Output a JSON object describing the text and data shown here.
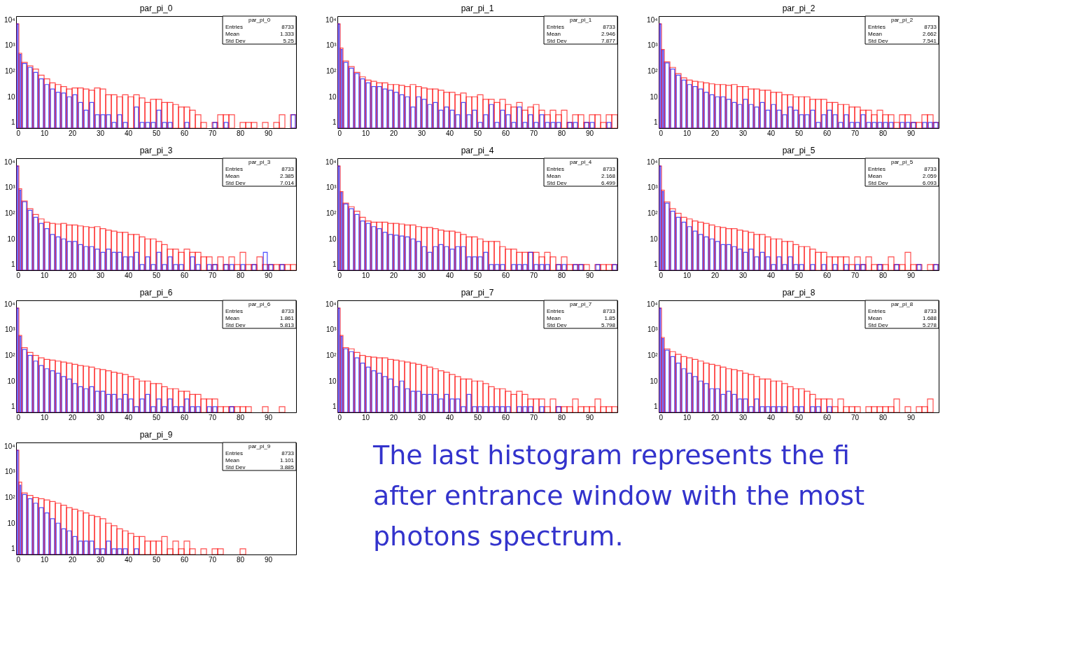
{
  "chart_data": [
    {
      "type": "histogram",
      "title": "par_pi_0",
      "bins": [
        0,
        1,
        2,
        4,
        6,
        8,
        10,
        12,
        14,
        16,
        18,
        20,
        22,
        24,
        26,
        28,
        30,
        32,
        34,
        36,
        38,
        40,
        42,
        44,
        46,
        48,
        50,
        52,
        54,
        56,
        58,
        60,
        62,
        64,
        66,
        68,
        70,
        72,
        74,
        76,
        78,
        80,
        82,
        84,
        86,
        88,
        90,
        92,
        94,
        96,
        98,
        100
      ],
      "xlim": [
        0,
        100
      ],
      "xticks": [
        0,
        10,
        20,
        30,
        40,
        50,
        60,
        70,
        80,
        90
      ],
      "ylim": [
        0.6,
        14000
      ],
      "log": true,
      "yticks": [
        1,
        10,
        {
          "value": 100,
          "label": "10²"
        },
        {
          "value": 1000,
          "label": "10³"
        },
        {
          "value": 10000,
          "label": "10⁴"
        }
      ],
      "annotations": [
        "par_pi_0",
        "Entries",
        "8733",
        "Mean",
        "1.333",
        "Std Dev",
        "5.25"
      ],
      "series": [
        {
          "color": "#ff0000",
          "values": [
            7000,
            500,
            220,
            160,
            120,
            70,
            50,
            35,
            30,
            25,
            20,
            22,
            22,
            20,
            18,
            22,
            20,
            12,
            12,
            10,
            12,
            10,
            12,
            9,
            6,
            8,
            8,
            6,
            6,
            5,
            4,
            4,
            3,
            2,
            1,
            null,
            1,
            2,
            2,
            2,
            null,
            1,
            1,
            1,
            null,
            1,
            null,
            1,
            2,
            null,
            2
          ]
        },
        {
          "color": "#0000ff",
          "values": [
            7000,
            450,
            200,
            140,
            90,
            50,
            30,
            20,
            15,
            14,
            10,
            12,
            6,
            3,
            6,
            2,
            2,
            2,
            1,
            2,
            1,
            null,
            4,
            1,
            1,
            1,
            3,
            1,
            1,
            null,
            null,
            1,
            null,
            null,
            null,
            null,
            1,
            null,
            1,
            null,
            null,
            null,
            null,
            null,
            null,
            null,
            null,
            null,
            null,
            null,
            2
          ]
        }
      ]
    },
    {
      "type": "histogram",
      "title": "par_pi_1",
      "bins": [
        0,
        1,
        2,
        4,
        6,
        8,
        10,
        12,
        14,
        16,
        18,
        20,
        22,
        24,
        26,
        28,
        30,
        32,
        34,
        36,
        38,
        40,
        42,
        44,
        46,
        48,
        50,
        52,
        54,
        56,
        58,
        60,
        62,
        64,
        66,
        68,
        70,
        72,
        74,
        76,
        78,
        80,
        82,
        84,
        86,
        88,
        90,
        92,
        94,
        96,
        98,
        100
      ],
      "xlim": [
        0,
        100
      ],
      "xticks": [
        0,
        10,
        20,
        30,
        40,
        50,
        60,
        70,
        80,
        90
      ],
      "ylim": [
        0.6,
        14000
      ],
      "log": true,
      "yticks": [
        1,
        10,
        {
          "value": 100,
          "label": "10²"
        },
        {
          "value": 1000,
          "label": "10³"
        },
        {
          "value": 10000,
          "label": "10⁴"
        }
      ],
      "annotations": [
        "par_pi_1",
        "Entries",
        "8733",
        "Mean",
        "2.946",
        "Std Dev",
        "7.877"
      ],
      "series": [
        {
          "color": "#ff0000",
          "values": [
            7000,
            800,
            250,
            150,
            90,
            60,
            45,
            40,
            35,
            35,
            30,
            30,
            28,
            25,
            30,
            25,
            22,
            20,
            20,
            18,
            15,
            15,
            12,
            14,
            10,
            10,
            12,
            8,
            8,
            6,
            8,
            5,
            4,
            6,
            3,
            4,
            5,
            3,
            2,
            3,
            2,
            3,
            1,
            2,
            2,
            1,
            2,
            2,
            1,
            2,
            2
          ]
        },
        {
          "color": "#0000ff",
          "values": [
            7000,
            700,
            220,
            130,
            80,
            50,
            35,
            25,
            25,
            20,
            18,
            15,
            12,
            10,
            4,
            10,
            8,
            5,
            6,
            3,
            4,
            3,
            2,
            6,
            2,
            3,
            1,
            2,
            5,
            1,
            3,
            2,
            1,
            4,
            1,
            2,
            1,
            2,
            1,
            1,
            1,
            null,
            1,
            1,
            null,
            1,
            1,
            null,
            null,
            1,
            null
          ]
        }
      ]
    },
    {
      "type": "histogram",
      "title": "par_pi_2",
      "bins": [
        0,
        1,
        2,
        4,
        6,
        8,
        10,
        12,
        14,
        16,
        18,
        20,
        22,
        24,
        26,
        28,
        30,
        32,
        34,
        36,
        38,
        40,
        42,
        44,
        46,
        48,
        50,
        52,
        54,
        56,
        58,
        60,
        62,
        64,
        66,
        68,
        70,
        72,
        74,
        76,
        78,
        80,
        82,
        84,
        86,
        88,
        90,
        92,
        94,
        96,
        98,
        100
      ],
      "xlim": [
        0,
        100
      ],
      "xticks": [
        0,
        10,
        20,
        30,
        40,
        50,
        60,
        70,
        80,
        90
      ],
      "ylim": [
        0.6,
        14000
      ],
      "log": true,
      "yticks": [
        1,
        10,
        {
          "value": 100,
          "label": "10²"
        },
        {
          "value": 1000,
          "label": "10³"
        },
        {
          "value": 10000,
          "label": "10⁴"
        }
      ],
      "annotations": [
        "par_pi_2",
        "Entries",
        "8733",
        "Mean",
        "2.662",
        "Std Dev",
        "7.541"
      ],
      "series": [
        {
          "color": "#ff0000",
          "values": [
            7000,
            700,
            230,
            140,
            80,
            55,
            45,
            40,
            38,
            35,
            32,
            30,
            30,
            28,
            30,
            25,
            25,
            20,
            20,
            18,
            18,
            15,
            15,
            12,
            12,
            10,
            10,
            10,
            8,
            8,
            8,
            6,
            6,
            5,
            5,
            4,
            4,
            3,
            3,
            2,
            3,
            2,
            2,
            1,
            2,
            2,
            1,
            1,
            2,
            2,
            1
          ]
        },
        {
          "color": "#0000ff",
          "values": [
            7000,
            650,
            210,
            120,
            70,
            45,
            30,
            25,
            20,
            15,
            12,
            10,
            10,
            8,
            6,
            5,
            8,
            5,
            4,
            6,
            3,
            5,
            3,
            2,
            4,
            3,
            2,
            2,
            3,
            1,
            2,
            3,
            2,
            1,
            2,
            1,
            1,
            2,
            1,
            1,
            1,
            1,
            1,
            null,
            1,
            1,
            1,
            null,
            1,
            1,
            1
          ]
        }
      ]
    },
    {
      "type": "histogram",
      "title": "par_pi_3",
      "bins": [
        0,
        1,
        2,
        4,
        6,
        8,
        10,
        12,
        14,
        16,
        18,
        20,
        22,
        24,
        26,
        28,
        30,
        32,
        34,
        36,
        38,
        40,
        42,
        44,
        46,
        48,
        50,
        52,
        54,
        56,
        58,
        60,
        62,
        64,
        66,
        68,
        70,
        72,
        74,
        76,
        78,
        80,
        82,
        84,
        86,
        88,
        90,
        92,
        94,
        96,
        98,
        100
      ],
      "xlim": [
        0,
        100
      ],
      "xticks": [
        0,
        10,
        20,
        30,
        40,
        50,
        60,
        70,
        80,
        90
      ],
      "ylim": [
        0.6,
        14000
      ],
      "log": true,
      "yticks": [
        1,
        10,
        {
          "value": 100,
          "label": "10²"
        },
        {
          "value": 1000,
          "label": "10³"
        },
        {
          "value": 10000,
          "label": "10⁴"
        }
      ],
      "annotations": [
        "par_pi_3",
        "Entries",
        "8733",
        "Mean",
        "2.385",
        "Std Dev",
        "7.014"
      ],
      "series": [
        {
          "color": "#ff0000",
          "values": [
            7000,
            900,
            300,
            150,
            90,
            60,
            45,
            40,
            38,
            40,
            35,
            35,
            32,
            30,
            28,
            30,
            25,
            22,
            20,
            18,
            18,
            15,
            15,
            12,
            10,
            10,
            8,
            6,
            4,
            4,
            3,
            4,
            3,
            3,
            2,
            2,
            1,
            2,
            1,
            2,
            1,
            3,
            1,
            1,
            2,
            1,
            1,
            1,
            1,
            1,
            1
          ]
        },
        {
          "color": "#0000ff",
          "values": [
            7000,
            800,
            280,
            130,
            70,
            40,
            25,
            15,
            12,
            10,
            8,
            8,
            6,
            5,
            5,
            4,
            3,
            4,
            3,
            3,
            2,
            2,
            3,
            1,
            2,
            1,
            3,
            1,
            2,
            1,
            1,
            null,
            2,
            1,
            null,
            1,
            1,
            null,
            1,
            1,
            null,
            1,
            null,
            1,
            null,
            3,
            1,
            null,
            1,
            null,
            null
          ]
        }
      ]
    },
    {
      "type": "histogram",
      "title": "par_pi_4",
      "bins": [
        0,
        1,
        2,
        4,
        6,
        8,
        10,
        12,
        14,
        16,
        18,
        20,
        22,
        24,
        26,
        28,
        30,
        32,
        34,
        36,
        38,
        40,
        42,
        44,
        46,
        48,
        50,
        52,
        54,
        56,
        58,
        60,
        62,
        64,
        66,
        68,
        70,
        72,
        74,
        76,
        78,
        80,
        82,
        84,
        86,
        88,
        90,
        92,
        94,
        96,
        98,
        100
      ],
      "xlim": [
        0,
        100
      ],
      "xticks": [
        0,
        10,
        20,
        30,
        40,
        50,
        60,
        70,
        80,
        90
      ],
      "ylim": [
        0.6,
        14000
      ],
      "log": true,
      "yticks": [
        1,
        10,
        {
          "value": 100,
          "label": "10²"
        },
        {
          "value": 1000,
          "label": "10³"
        },
        {
          "value": 10000,
          "label": "10⁴"
        }
      ],
      "annotations": [
        "par_pi_4",
        "Entries",
        "8733",
        "Mean",
        "2.168",
        "Std Dev",
        "6.499"
      ],
      "series": [
        {
          "color": "#ff0000",
          "values": [
            7000,
            700,
            250,
            180,
            120,
            70,
            50,
            45,
            45,
            45,
            40,
            40,
            38,
            35,
            35,
            30,
            28,
            28,
            25,
            22,
            20,
            20,
            18,
            15,
            12,
            12,
            10,
            8,
            8,
            8,
            5,
            4,
            4,
            3,
            3,
            3,
            3,
            2,
            3,
            2,
            1,
            2,
            1,
            1,
            1,
            1,
            null,
            1,
            1,
            1,
            1
          ]
        },
        {
          "color": "#0000ff",
          "values": [
            7000,
            650,
            230,
            150,
            90,
            50,
            40,
            30,
            25,
            18,
            15,
            14,
            13,
            12,
            10,
            8,
            5,
            3,
            5,
            6,
            5,
            4,
            5,
            5,
            2,
            2,
            2,
            3,
            1,
            1,
            1,
            null,
            1,
            1,
            1,
            3,
            1,
            1,
            1,
            null,
            1,
            1,
            null,
            1,
            1,
            null,
            null,
            1,
            null,
            null,
            1
          ]
        }
      ]
    },
    {
      "type": "histogram",
      "title": "par_pi_5",
      "bins": [
        0,
        1,
        2,
        4,
        6,
        8,
        10,
        12,
        14,
        16,
        18,
        20,
        22,
        24,
        26,
        28,
        30,
        32,
        34,
        36,
        38,
        40,
        42,
        44,
        46,
        48,
        50,
        52,
        54,
        56,
        58,
        60,
        62,
        64,
        66,
        68,
        70,
        72,
        74,
        76,
        78,
        80,
        82,
        84,
        86,
        88,
        90,
        92,
        94,
        96,
        98,
        100
      ],
      "xlim": [
        0,
        100
      ],
      "xticks": [
        0,
        10,
        20,
        30,
        40,
        50,
        60,
        70,
        80,
        90
      ],
      "ylim": [
        0.6,
        14000
      ],
      "log": true,
      "yticks": [
        1,
        10,
        {
          "value": 100,
          "label": "10²"
        },
        {
          "value": 1000,
          "label": "10³"
        },
        {
          "value": 10000,
          "label": "10⁴"
        }
      ],
      "annotations": [
        "par_pi_5",
        "Entries",
        "8733",
        "Mean",
        "2.059",
        "Std Dev",
        "6.093"
      ],
      "series": [
        {
          "color": "#ff0000",
          "values": [
            7000,
            800,
            280,
            150,
            100,
            70,
            60,
            50,
            45,
            40,
            35,
            30,
            28,
            25,
            25,
            22,
            20,
            18,
            15,
            15,
            12,
            10,
            10,
            8,
            8,
            6,
            5,
            5,
            4,
            3,
            3,
            2,
            2,
            2,
            2,
            1,
            2,
            1,
            2,
            1,
            1,
            1,
            2,
            1,
            1,
            3,
            1,
            1,
            null,
            1,
            1
          ]
        },
        {
          "color": "#0000ff",
          "values": [
            7000,
            700,
            250,
            120,
            70,
            45,
            30,
            20,
            15,
            12,
            10,
            8,
            6,
            6,
            5,
            4,
            3,
            4,
            2,
            3,
            2,
            1,
            2,
            1,
            2,
            1,
            1,
            null,
            1,
            null,
            1,
            null,
            1,
            null,
            1,
            null,
            1,
            1,
            null,
            null,
            1,
            null,
            null,
            1,
            null,
            null,
            null,
            1,
            null,
            null,
            1
          ]
        }
      ]
    },
    {
      "type": "histogram",
      "title": "par_pi_6",
      "bins": [
        0,
        1,
        2,
        4,
        6,
        8,
        10,
        12,
        14,
        16,
        18,
        20,
        22,
        24,
        26,
        28,
        30,
        32,
        34,
        36,
        38,
        40,
        42,
        44,
        46,
        48,
        50,
        52,
        54,
        56,
        58,
        60,
        62,
        64,
        66,
        68,
        70,
        72,
        74,
        76,
        78,
        80,
        82,
        84,
        88,
        90,
        94,
        96
      ],
      "xlim": [
        0,
        100
      ],
      "xticks": [
        0,
        10,
        20,
        30,
        40,
        50,
        60,
        70,
        80,
        90
      ],
      "ylim": [
        0.6,
        14000
      ],
      "log": true,
      "yticks": [
        1,
        10,
        {
          "value": 100,
          "label": "10²"
        },
        {
          "value": 1000,
          "label": "10³"
        },
        {
          "value": 10000,
          "label": "10⁴"
        }
      ],
      "annotations": [
        "par_pi_6",
        "Entries",
        "8733",
        "Mean",
        "1.861",
        "Std Dev",
        "5.813"
      ],
      "series": [
        {
          "color": "#ff0000",
          "values": [
            7000,
            600,
            200,
            130,
            100,
            80,
            70,
            65,
            60,
            55,
            50,
            45,
            40,
            38,
            35,
            30,
            28,
            25,
            22,
            20,
            18,
            15,
            12,
            10,
            10,
            8,
            8,
            6,
            5,
            5,
            4,
            4,
            3,
            3,
            2,
            2,
            2,
            1,
            1,
            1,
            1,
            1,
            1,
            null,
            1,
            null,
            1
          ]
        },
        {
          "color": "#0000ff",
          "values": [
            7000,
            550,
            170,
            100,
            60,
            40,
            30,
            25,
            20,
            15,
            12,
            8,
            6,
            5,
            6,
            4,
            4,
            3,
            3,
            2,
            3,
            2,
            1,
            2,
            3,
            1,
            2,
            1,
            2,
            1,
            1,
            2,
            1,
            1,
            null,
            1,
            1,
            null,
            null,
            1,
            null,
            null,
            null,
            null,
            null,
            null,
            null
          ]
        }
      ]
    },
    {
      "type": "histogram",
      "title": "par_pi_7",
      "bins": [
        0,
        1,
        2,
        4,
        6,
        8,
        10,
        12,
        14,
        16,
        18,
        20,
        22,
        24,
        26,
        28,
        30,
        32,
        34,
        36,
        38,
        40,
        42,
        44,
        46,
        48,
        50,
        52,
        54,
        56,
        58,
        60,
        62,
        64,
        66,
        68,
        70,
        72,
        74,
        76,
        78,
        80,
        82,
        84,
        86,
        88,
        90,
        92,
        94,
        96,
        98,
        100
      ],
      "xlim": [
        0,
        100
      ],
      "xticks": [
        0,
        10,
        20,
        30,
        40,
        50,
        60,
        70,
        80,
        90
      ],
      "ylim": [
        0.6,
        14000
      ],
      "log": true,
      "yticks": [
        1,
        10,
        {
          "value": 100,
          "label": "10²"
        },
        {
          "value": 1000,
          "label": "10³"
        },
        {
          "value": 10000,
          "label": "10⁴"
        }
      ],
      "annotations": [
        "par_pi_7",
        "Entries",
        "8733",
        "Mean",
        "1.85",
        "Std Dev",
        "5.798"
      ],
      "series": [
        {
          "color": "#ff0000",
          "values": [
            7000,
            600,
            200,
            180,
            130,
            100,
            90,
            85,
            80,
            80,
            70,
            65,
            60,
            55,
            50,
            45,
            40,
            35,
            30,
            25,
            22,
            18,
            15,
            12,
            12,
            10,
            10,
            8,
            6,
            5,
            5,
            4,
            3,
            4,
            3,
            2,
            2,
            2,
            1,
            2,
            1,
            1,
            1,
            2,
            1,
            1,
            1,
            2,
            1,
            1,
            1
          ]
        },
        {
          "color": "#0000ff",
          "values": [
            7000,
            550,
            180,
            140,
            80,
            50,
            35,
            25,
            20,
            15,
            12,
            6,
            10,
            5,
            4,
            4,
            3,
            3,
            3,
            2,
            3,
            2,
            2,
            1,
            3,
            1,
            1,
            1,
            1,
            1,
            1,
            1,
            null,
            1,
            1,
            1,
            null,
            1,
            null,
            null,
            1,
            null,
            null,
            null,
            null,
            null,
            null,
            null,
            null,
            null,
            null
          ]
        }
      ]
    },
    {
      "type": "histogram",
      "title": "par_pi_8",
      "bins": [
        0,
        1,
        2,
        4,
        6,
        8,
        10,
        12,
        14,
        16,
        18,
        20,
        22,
        24,
        26,
        28,
        30,
        32,
        34,
        36,
        38,
        40,
        42,
        44,
        46,
        48,
        50,
        52,
        54,
        56,
        58,
        60,
        62,
        64,
        66,
        68,
        70,
        72,
        74,
        76,
        78,
        80,
        82,
        84,
        86,
        88,
        90,
        92,
        94,
        96,
        98
      ],
      "xlim": [
        0,
        100
      ],
      "xticks": [
        0,
        10,
        20,
        30,
        40,
        50,
        60,
        70,
        80,
        90
      ],
      "ylim": [
        0.6,
        14000
      ],
      "log": true,
      "yticks": [
        1,
        10,
        {
          "value": 100,
          "label": "10²"
        },
        {
          "value": 1000,
          "label": "10³"
        },
        {
          "value": 10000,
          "label": "10⁴"
        }
      ],
      "annotations": [
        "par_pi_8",
        "Entries",
        "8733",
        "Mean",
        "1.688",
        "Std Dev",
        "5.278"
      ],
      "series": [
        {
          "color": "#ff0000",
          "values": [
            7000,
            500,
            180,
            140,
            110,
            90,
            80,
            70,
            60,
            50,
            45,
            40,
            35,
            30,
            28,
            25,
            20,
            18,
            15,
            12,
            12,
            10,
            10,
            8,
            6,
            5,
            5,
            4,
            3,
            2,
            2,
            2,
            1,
            2,
            1,
            1,
            1,
            null,
            1,
            1,
            1,
            1,
            1,
            2,
            null,
            1,
            null,
            1,
            1,
            2
          ]
        },
        {
          "color": "#0000ff",
          "values": [
            7000,
            450,
            160,
            90,
            50,
            30,
            20,
            15,
            10,
            8,
            5,
            5,
            3,
            4,
            3,
            2,
            2,
            1,
            2,
            1,
            1,
            1,
            1,
            1,
            null,
            1,
            1,
            null,
            1,
            1,
            null,
            1,
            null,
            null,
            null,
            null,
            null,
            null,
            null,
            null,
            null,
            null,
            null,
            null,
            null,
            null,
            null,
            null,
            null,
            null
          ]
        }
      ]
    },
    {
      "type": "histogram",
      "title": "par_pi_9",
      "bins": [
        0,
        1,
        2,
        4,
        6,
        8,
        10,
        12,
        14,
        16,
        18,
        20,
        22,
        24,
        26,
        28,
        30,
        32,
        34,
        36,
        38,
        40,
        42,
        44,
        46,
        48,
        50,
        52,
        54,
        56,
        58,
        60,
        62,
        64,
        66,
        68,
        70,
        72,
        74,
        80,
        82
      ],
      "xlim": [
        0,
        100
      ],
      "xticks": [
        0,
        10,
        20,
        30,
        40,
        50,
        60,
        70,
        80,
        90
      ],
      "ylim": [
        0.6,
        14000
      ],
      "log": true,
      "yticks": [
        1,
        10,
        {
          "value": 100,
          "label": "10²"
        },
        {
          "value": 1000,
          "label": "10³"
        },
        {
          "value": 10000,
          "label": "10⁴"
        }
      ],
      "annotations": [
        "par_pi_9",
        "Entries",
        "8733",
        "Mean",
        "1.101",
        "Std Dev",
        "3.885",
        "The last histogram represents the fi",
        "after entrance window with the most",
        "photons spectrum."
      ],
      "series": [
        {
          "color": "#ff0000",
          "values": [
            7000,
            400,
            150,
            120,
            100,
            90,
            80,
            70,
            60,
            50,
            40,
            35,
            30,
            25,
            20,
            18,
            15,
            10,
            8,
            6,
            5,
            4,
            3,
            3,
            2,
            2,
            2,
            3,
            1,
            2,
            1,
            2,
            1,
            null,
            1,
            null,
            1,
            1,
            null,
            1
          ]
        },
        {
          "color": "#0000ff",
          "values": [
            7000,
            300,
            130,
            90,
            60,
            40,
            25,
            15,
            10,
            6,
            5,
            3,
            2,
            2,
            2,
            1,
            1,
            2,
            1,
            1,
            1,
            null,
            1,
            null,
            null,
            null,
            null,
            null,
            null,
            null,
            null,
            null,
            null,
            null,
            null,
            null,
            null,
            null,
            null,
            null
          ]
        }
      ]
    }
  ]
}
